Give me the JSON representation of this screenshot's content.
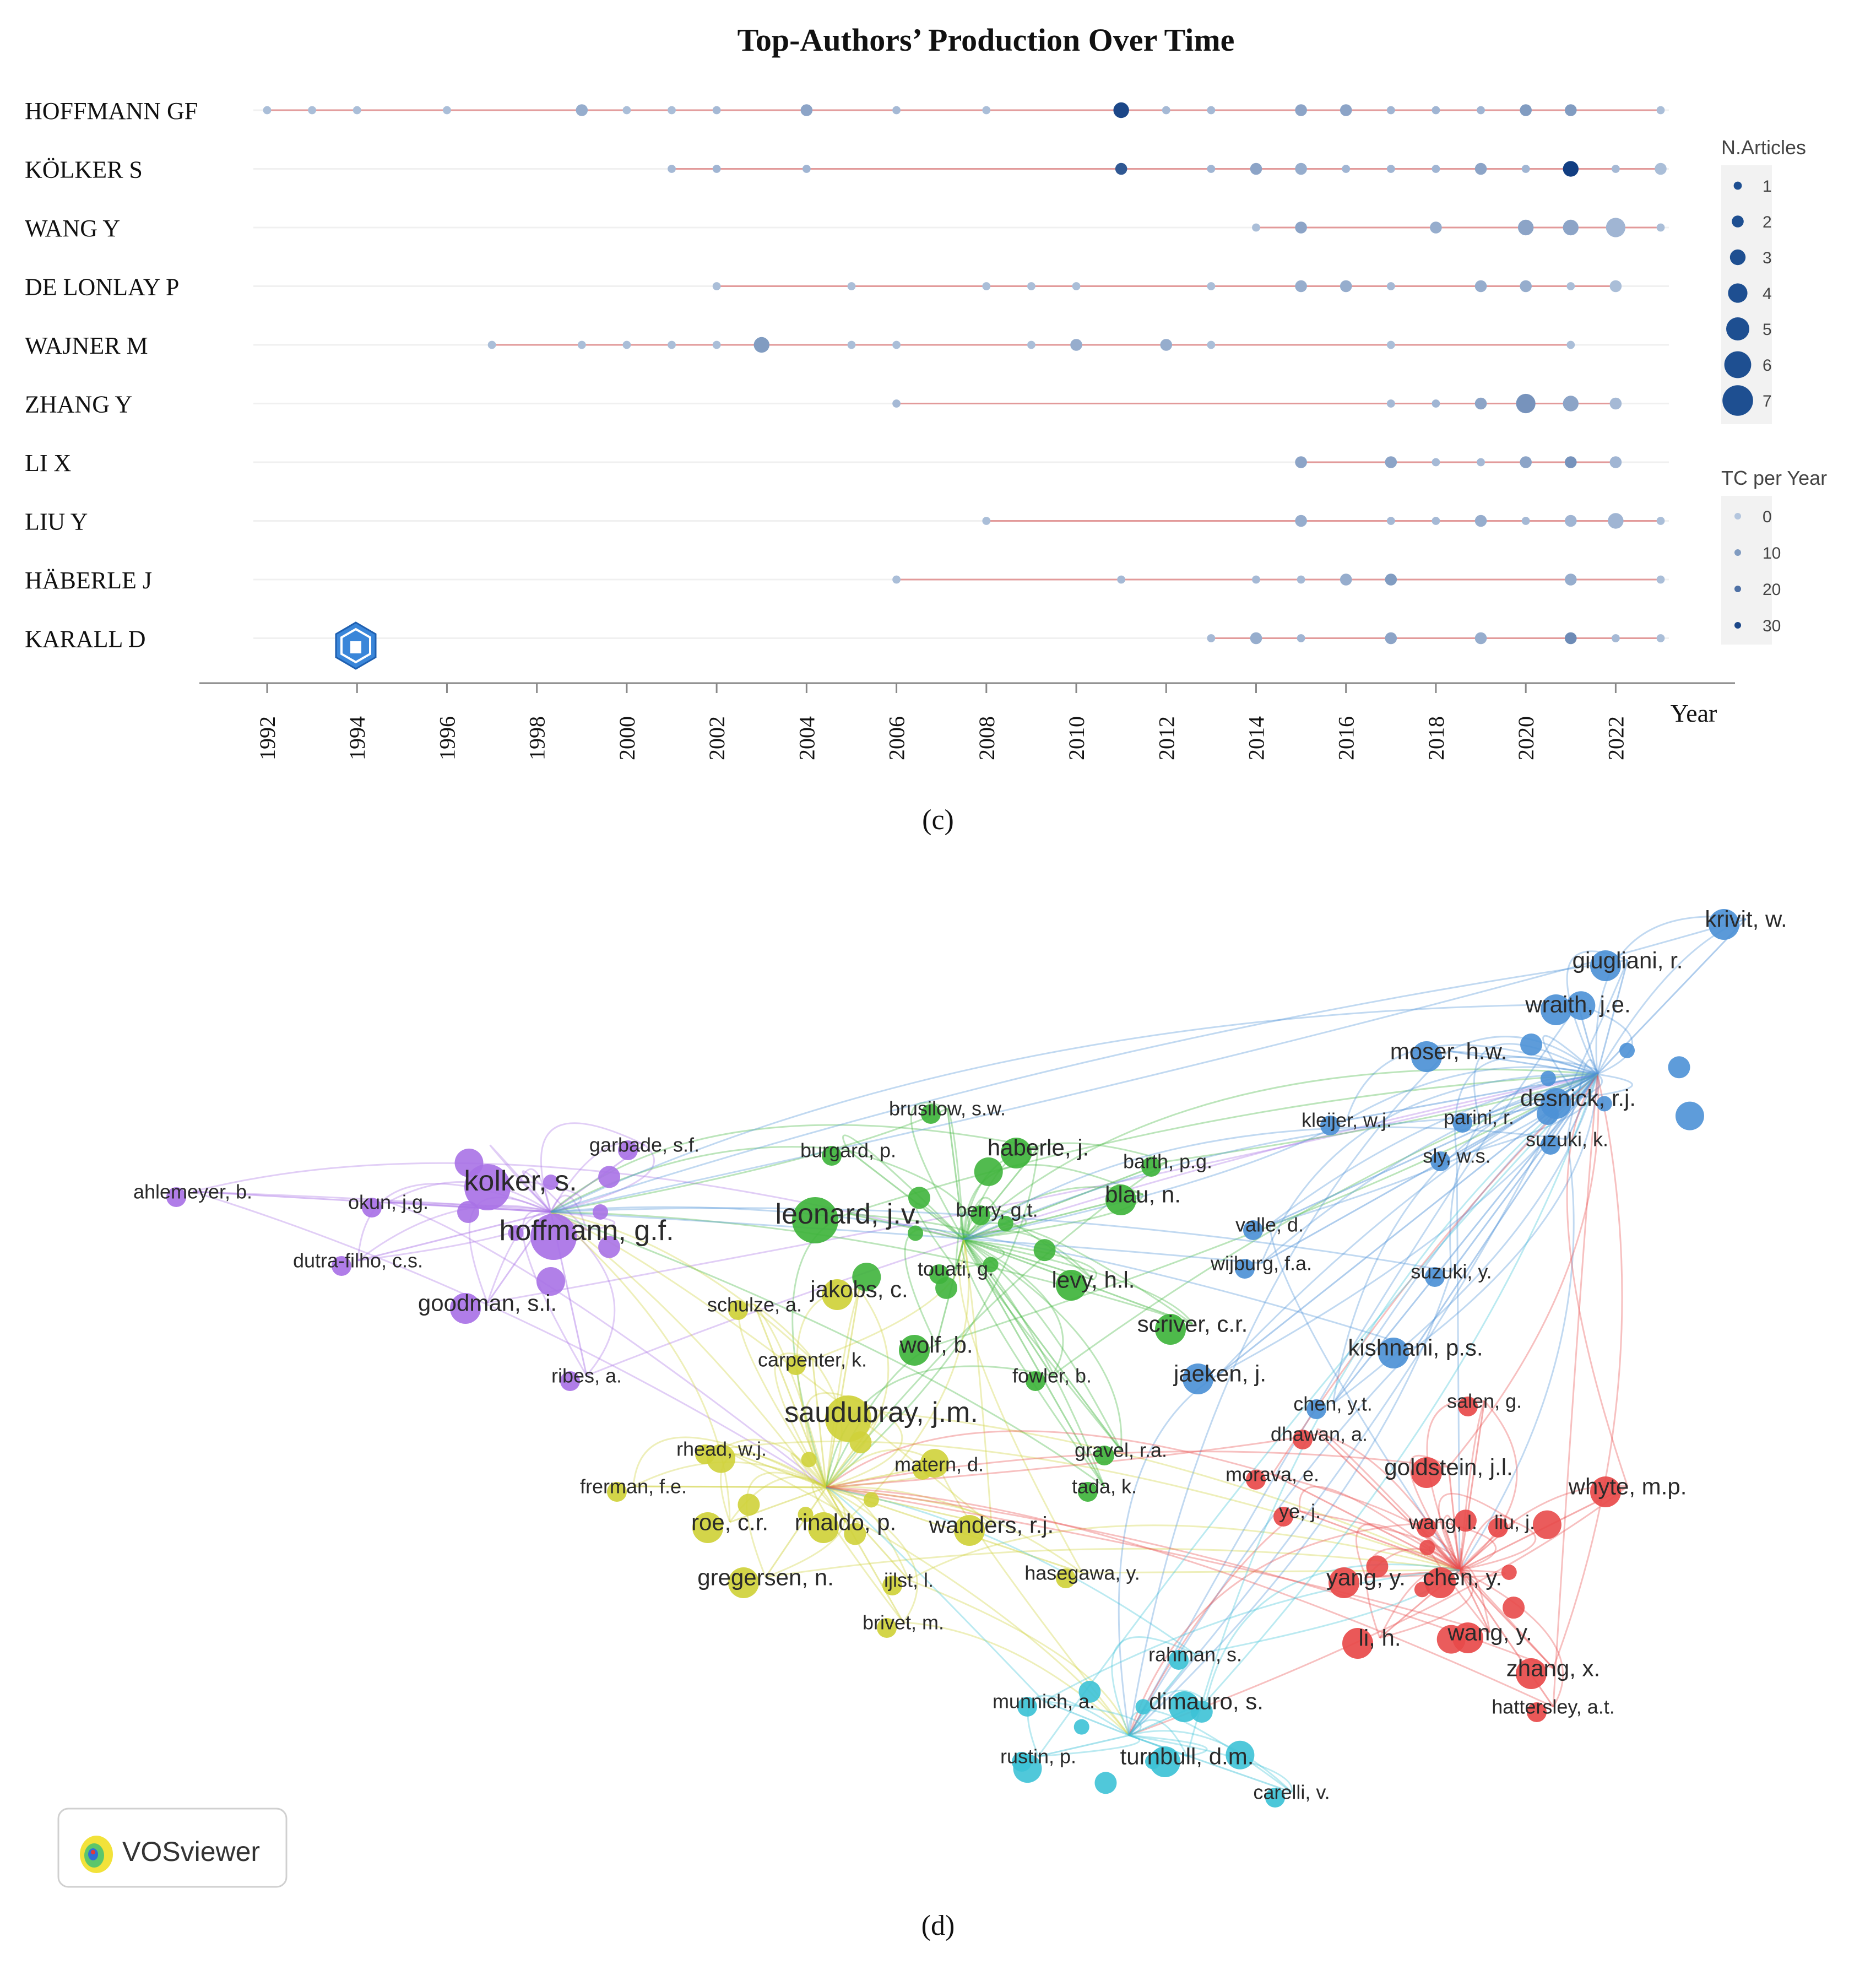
{
  "panel_c_caption": "(c)",
  "panel_d_caption": "(d)",
  "vosviewer_label": "VOSviewer",
  "chart_data": [
    {
      "type": "scatter",
      "title": "Top-Authors’ Production Over Time",
      "xlabel": "Year",
      "ylabel": "",
      "x_ticks": [
        1992,
        1994,
        1996,
        1998,
        2000,
        2002,
        2004,
        2006,
        2008,
        2010,
        2012,
        2014,
        2016,
        2018,
        2020,
        2022
      ],
      "xlim": [
        1992,
        2023
      ],
      "legend": {
        "placement": "right",
        "size_title": "N.Articles",
        "size_levels": [
          1,
          2,
          3,
          4,
          5,
          6,
          7
        ],
        "color_title": "TC per Year",
        "color_levels": [
          0,
          10,
          20,
          30
        ]
      },
      "series": [
        {
          "name": "HOFFMANN GF",
          "start": 1992,
          "end": 2023,
          "points": [
            [
              1992,
              1,
              2
            ],
            [
              1993,
              1,
              2
            ],
            [
              1994,
              1,
              2
            ],
            [
              1996,
              1,
              2
            ],
            [
              1999,
              2,
              6
            ],
            [
              2000,
              1,
              2
            ],
            [
              2001,
              1,
              2
            ],
            [
              2002,
              1,
              3
            ],
            [
              2004,
              2,
              8
            ],
            [
              2006,
              1,
              3
            ],
            [
              2008,
              1,
              2
            ],
            [
              2011,
              3,
              30
            ],
            [
              2012,
              1,
              3
            ],
            [
              2013,
              1,
              3
            ],
            [
              2015,
              2,
              8
            ],
            [
              2016,
              2,
              8
            ],
            [
              2017,
              1,
              4
            ],
            [
              2018,
              1,
              4
            ],
            [
              2019,
              1,
              4
            ],
            [
              2020,
              2,
              10
            ],
            [
              2021,
              2,
              10
            ],
            [
              2023,
              1,
              2
            ]
          ]
        },
        {
          "name": "KÖLKER S",
          "start": 2001,
          "end": 2023,
          "points": [
            [
              2001,
              1,
              3
            ],
            [
              2002,
              1,
              4
            ],
            [
              2004,
              1,
              4
            ],
            [
              2011,
              2,
              26
            ],
            [
              2013,
              1,
              4
            ],
            [
              2014,
              2,
              8
            ],
            [
              2015,
              2,
              6
            ],
            [
              2016,
              1,
              4
            ],
            [
              2017,
              1,
              4
            ],
            [
              2018,
              1,
              4
            ],
            [
              2019,
              2,
              8
            ],
            [
              2020,
              1,
              4
            ],
            [
              2021,
              3,
              32
            ],
            [
              2022,
              1,
              3
            ],
            [
              2023,
              2,
              2
            ]
          ]
        },
        {
          "name": "WANG Y",
          "start": 2014,
          "end": 2023,
          "points": [
            [
              2014,
              1,
              2
            ],
            [
              2015,
              2,
              8
            ],
            [
              2018,
              2,
              6
            ],
            [
              2020,
              3,
              8
            ],
            [
              2021,
              3,
              8
            ],
            [
              2022,
              4,
              4
            ],
            [
              2023,
              1,
              2
            ]
          ]
        },
        {
          "name": "DE LONLAY P",
          "start": 2002,
          "end": 2022,
          "points": [
            [
              2002,
              1,
              2
            ],
            [
              2005,
              1,
              2
            ],
            [
              2008,
              1,
              2
            ],
            [
              2009,
              1,
              2
            ],
            [
              2010,
              1,
              2
            ],
            [
              2013,
              1,
              2
            ],
            [
              2015,
              2,
              6
            ],
            [
              2016,
              2,
              6
            ],
            [
              2017,
              1,
              3
            ],
            [
              2019,
              2,
              6
            ],
            [
              2020,
              2,
              6
            ],
            [
              2021,
              1,
              2
            ],
            [
              2022,
              2,
              2
            ]
          ]
        },
        {
          "name": "WAJNER M",
          "start": 1997,
          "end": 2021,
          "points": [
            [
              1997,
              1,
              2
            ],
            [
              1999,
              1,
              2
            ],
            [
              2000,
              1,
              2
            ],
            [
              2001,
              1,
              2
            ],
            [
              2002,
              1,
              2
            ],
            [
              2003,
              3,
              10
            ],
            [
              2005,
              1,
              2
            ],
            [
              2006,
              1,
              2
            ],
            [
              2009,
              1,
              2
            ],
            [
              2010,
              2,
              6
            ],
            [
              2012,
              2,
              6
            ],
            [
              2013,
              1,
              2
            ],
            [
              2017,
              1,
              2
            ],
            [
              2021,
              1,
              2
            ]
          ]
        },
        {
          "name": "ZHANG Y",
          "start": 2006,
          "end": 2022,
          "points": [
            [
              2006,
              1,
              3
            ],
            [
              2017,
              1,
              3
            ],
            [
              2018,
              1,
              4
            ],
            [
              2019,
              2,
              8
            ],
            [
              2020,
              4,
              12
            ],
            [
              2021,
              3,
              8
            ],
            [
              2022,
              2,
              3
            ]
          ]
        },
        {
          "name": "LI X",
          "start": 2015,
          "end": 2022,
          "points": [
            [
              2015,
              2,
              8
            ],
            [
              2017,
              2,
              8
            ],
            [
              2018,
              1,
              3
            ],
            [
              2019,
              1,
              3
            ],
            [
              2020,
              2,
              8
            ],
            [
              2021,
              2,
              12
            ],
            [
              2022,
              2,
              4
            ]
          ]
        },
        {
          "name": "LIU Y",
          "start": 2008,
          "end": 2023,
          "points": [
            [
              2008,
              1,
              2
            ],
            [
              2015,
              2,
              6
            ],
            [
              2017,
              1,
              3
            ],
            [
              2018,
              1,
              3
            ],
            [
              2019,
              2,
              6
            ],
            [
              2020,
              1,
              3
            ],
            [
              2021,
              2,
              4
            ],
            [
              2022,
              3,
              4
            ],
            [
              2023,
              1,
              2
            ]
          ]
        },
        {
          "name": "HÄBERLE J",
          "start": 2006,
          "end": 2023,
          "points": [
            [
              2006,
              1,
              2
            ],
            [
              2011,
              1,
              3
            ],
            [
              2014,
              1,
              3
            ],
            [
              2015,
              1,
              3
            ],
            [
              2016,
              2,
              6
            ],
            [
              2017,
              2,
              10
            ],
            [
              2021,
              2,
              6
            ],
            [
              2023,
              1,
              2
            ]
          ]
        },
        {
          "name": "KARALL D",
          "start": 2013,
          "end": 2023,
          "points": [
            [
              2013,
              1,
              3
            ],
            [
              2014,
              2,
              6
            ],
            [
              2015,
              1,
              4
            ],
            [
              2017,
              2,
              8
            ],
            [
              2019,
              2,
              6
            ],
            [
              2021,
              2,
              14
            ],
            [
              2022,
              1,
              3
            ],
            [
              2023,
              1,
              2
            ]
          ]
        }
      ]
    },
    {
      "type": "network",
      "title": "",
      "clusters": [
        {
          "name": "purple",
          "color": "#a972e6"
        },
        {
          "name": "green",
          "color": "#3fb43c"
        },
        {
          "name": "yellow",
          "color": "#cfd13a"
        },
        {
          "name": "blue",
          "color": "#4d91d6"
        },
        {
          "name": "red",
          "color": "#e84a4a"
        },
        {
          "name": "cyan",
          "color": "#3dc2d6"
        }
      ],
      "labels": [
        {
          "text": "ahlemeyer, b.",
          "cluster": "purple",
          "size": "s"
        },
        {
          "text": "okun, j.g.",
          "cluster": "purple",
          "size": "s"
        },
        {
          "text": "garbade, s.f.",
          "cluster": "purple",
          "size": "s"
        },
        {
          "text": "kolker, s.",
          "cluster": "purple",
          "size": "l"
        },
        {
          "text": "hoffmann, g.f.",
          "cluster": "purple",
          "size": "l"
        },
        {
          "text": "dutra-filho, c.s.",
          "cluster": "purple",
          "size": "s"
        },
        {
          "text": "goodman, s.i.",
          "cluster": "purple",
          "size": "m"
        },
        {
          "text": "ribes, a.",
          "cluster": "purple",
          "size": "s"
        },
        {
          "text": "brusilow, s.w.",
          "cluster": "green",
          "size": "s"
        },
        {
          "text": "burgard, p.",
          "cluster": "green",
          "size": "s"
        },
        {
          "text": "haberle, j.",
          "cluster": "green",
          "size": "m"
        },
        {
          "text": "barth, p.g.",
          "cluster": "green",
          "size": "s"
        },
        {
          "text": "leonard, j.v.",
          "cluster": "green",
          "size": "l"
        },
        {
          "text": "berry, g.t.",
          "cluster": "green",
          "size": "s"
        },
        {
          "text": "blau, n.",
          "cluster": "green",
          "size": "m"
        },
        {
          "text": "touati, g.",
          "cluster": "green",
          "size": "s"
        },
        {
          "text": "levy, h.l.",
          "cluster": "green",
          "size": "m"
        },
        {
          "text": "schulze, a.",
          "cluster": "yellow",
          "size": "s"
        },
        {
          "text": "jakobs, c.",
          "cluster": "yellow",
          "size": "m"
        },
        {
          "text": "scriver, c.r.",
          "cluster": "green",
          "size": "m"
        },
        {
          "text": "carpenter, k.",
          "cluster": "yellow",
          "size": "s"
        },
        {
          "text": "wolf, b.",
          "cluster": "green",
          "size": "m"
        },
        {
          "text": "fowler, b.",
          "cluster": "green",
          "size": "s"
        },
        {
          "text": "saudubray, j.m.",
          "cluster": "yellow",
          "size": "l"
        },
        {
          "text": "rhead, w.j.",
          "cluster": "yellow",
          "size": "s"
        },
        {
          "text": "gravel, r.a.",
          "cluster": "green",
          "size": "s"
        },
        {
          "text": "matern, d.",
          "cluster": "yellow",
          "size": "s"
        },
        {
          "text": "frerman, f.e.",
          "cluster": "yellow",
          "size": "s"
        },
        {
          "text": "tada, k.",
          "cluster": "green",
          "size": "s"
        },
        {
          "text": "roe, c.r.",
          "cluster": "yellow",
          "size": "m"
        },
        {
          "text": "rinaldo, p.",
          "cluster": "yellow",
          "size": "m"
        },
        {
          "text": "wanders, r.j.",
          "cluster": "yellow",
          "size": "m"
        },
        {
          "text": "hasegawa, y.",
          "cluster": "yellow",
          "size": "s"
        },
        {
          "text": "gregersen, n.",
          "cluster": "yellow",
          "size": "m"
        },
        {
          "text": "ijlst, l.",
          "cluster": "yellow",
          "size": "s"
        },
        {
          "text": "brivet, m.",
          "cluster": "yellow",
          "size": "s"
        },
        {
          "text": "krivit, w.",
          "cluster": "blue",
          "size": "m"
        },
        {
          "text": "giugliani, r.",
          "cluster": "blue",
          "size": "m"
        },
        {
          "text": "wraith, j.e.",
          "cluster": "blue",
          "size": "m"
        },
        {
          "text": "moser, h.w.",
          "cluster": "blue",
          "size": "m"
        },
        {
          "text": "desnick, r.j.",
          "cluster": "blue",
          "size": "m"
        },
        {
          "text": "kleijer, w.j.",
          "cluster": "blue",
          "size": "s"
        },
        {
          "text": "parini, r.",
          "cluster": "blue",
          "size": "s"
        },
        {
          "text": "suzuki, k.",
          "cluster": "blue",
          "size": "s"
        },
        {
          "text": "sly, w.s.",
          "cluster": "blue",
          "size": "s"
        },
        {
          "text": "valle, d.",
          "cluster": "blue",
          "size": "s"
        },
        {
          "text": "wijburg, f.a.",
          "cluster": "blue",
          "size": "s"
        },
        {
          "text": "suzuki, y.",
          "cluster": "blue",
          "size": "s"
        },
        {
          "text": "kishnani, p.s.",
          "cluster": "blue",
          "size": "m"
        },
        {
          "text": "jaeken, j.",
          "cluster": "blue",
          "size": "m"
        },
        {
          "text": "chen, y.t.",
          "cluster": "blue",
          "size": "s"
        },
        {
          "text": "salen, g.",
          "cluster": "red",
          "size": "s"
        },
        {
          "text": "dhawan, a.",
          "cluster": "red",
          "size": "s"
        },
        {
          "text": "goldstein, j.l.",
          "cluster": "red",
          "size": "m"
        },
        {
          "text": "morava, e.",
          "cluster": "red",
          "size": "s"
        },
        {
          "text": "whyte, m.p.",
          "cluster": "red",
          "size": "m"
        },
        {
          "text": "ye, j.",
          "cluster": "red",
          "size": "s"
        },
        {
          "text": "wang, l.",
          "cluster": "red",
          "size": "s"
        },
        {
          "text": "liu, j.",
          "cluster": "red",
          "size": "s"
        },
        {
          "text": "yang, y.",
          "cluster": "red",
          "size": "m"
        },
        {
          "text": "chen, y.",
          "cluster": "red",
          "size": "m"
        },
        {
          "text": "li, h.",
          "cluster": "red",
          "size": "m"
        },
        {
          "text": "wang, y.",
          "cluster": "red",
          "size": "m"
        },
        {
          "text": "zhang, x.",
          "cluster": "red",
          "size": "m"
        },
        {
          "text": "hattersley, a.t.",
          "cluster": "red",
          "size": "s"
        },
        {
          "text": "rahman, s.",
          "cluster": "cyan",
          "size": "s"
        },
        {
          "text": "munnich, a.",
          "cluster": "cyan",
          "size": "s"
        },
        {
          "text": "dimauro, s.",
          "cluster": "cyan",
          "size": "m"
        },
        {
          "text": "rustin, p.",
          "cluster": "cyan",
          "size": "s"
        },
        {
          "text": "turnbull, d.m.",
          "cluster": "cyan",
          "size": "m"
        },
        {
          "text": "carelli, v.",
          "cluster": "cyan",
          "size": "s"
        }
      ]
    }
  ]
}
